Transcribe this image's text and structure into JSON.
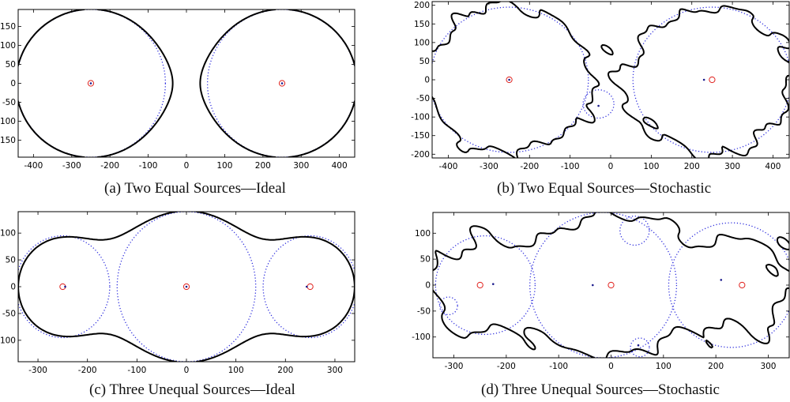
{
  "chart_data": [
    {
      "type": "scatter",
      "caption": "(a)  Two Equal Sources—Ideal",
      "xlim": [
        -440,
        440
      ],
      "ylim": [
        -195,
        195
      ],
      "xticks": [
        -400,
        -300,
        -200,
        -100,
        0,
        100,
        200,
        300,
        400
      ],
      "yticks": [
        -150,
        -100,
        -50,
        0,
        50,
        100,
        150
      ],
      "sources": [
        {
          "x": -250,
          "y": 0
        },
        {
          "x": 250,
          "y": 0
        }
      ],
      "estimates": [
        {
          "x": -250,
          "y": 0
        },
        {
          "x": 250,
          "y": 0
        }
      ],
      "circles": [
        {
          "cx": -250,
          "cy": 0,
          "r": 195
        },
        {
          "cx": 250,
          "cy": 0,
          "r": 195
        }
      ],
      "boundary": {
        "model": "sum",
        "stochastic": false,
        "sources": [
          {
            "x": -250,
            "y": 0,
            "k": 1
          },
          {
            "x": 250,
            "y": 0,
            "k": 1
          }
        ],
        "flatten": 0.99
      }
    },
    {
      "type": "scatter",
      "caption": "(b)  Two Equal Sources—Stochastic",
      "xlim": [
        -440,
        440
      ],
      "ylim": [
        -210,
        210
      ],
      "xticks": [
        -400,
        -300,
        -200,
        -100,
        0,
        100,
        200,
        300,
        400
      ],
      "yticks": [
        -200,
        -150,
        -100,
        -50,
        0,
        50,
        100,
        150,
        200
      ],
      "sources": [
        {
          "x": -250,
          "y": 0
        },
        {
          "x": 250,
          "y": 0
        }
      ],
      "estimates": [
        {
          "x": -250,
          "y": 0
        },
        {
          "x": 230,
          "y": 0
        },
        {
          "x": -30,
          "y": -70
        }
      ],
      "circles": [
        {
          "cx": -250,
          "cy": 0,
          "r": 195
        },
        {
          "cx": 250,
          "cy": 0,
          "r": 195
        },
        {
          "cx": -30,
          "cy": -65,
          "r": 38
        }
      ],
      "boundary": {
        "model": "sum",
        "stochastic": true,
        "sources": [
          {
            "x": -250,
            "y": 0,
            "k": 1
          },
          {
            "x": 250,
            "y": 0,
            "k": 1
          }
        ],
        "flatten": 0.99
      }
    },
    {
      "type": "scatter",
      "caption": "(c)  Three Unequal Sources—Ideal",
      "xlim": [
        -340,
        340
      ],
      "ylim": [
        -140,
        140
      ],
      "xticks": [
        -300,
        -200,
        -100,
        0,
        100,
        200,
        300
      ],
      "yticks": [
        -100,
        -50,
        0,
        50,
        100
      ],
      "sources": [
        {
          "x": -250,
          "y": 0
        },
        {
          "x": 0,
          "y": 0
        },
        {
          "x": 250,
          "y": 0
        }
      ],
      "estimates": [
        {
          "x": -245,
          "y": 0
        },
        {
          "x": 0,
          "y": 0
        },
        {
          "x": 243,
          "y": 0
        }
      ],
      "circles": [
        {
          "cx": -250,
          "cy": 0,
          "r": 95
        },
        {
          "cx": 0,
          "cy": 0,
          "r": 140
        },
        {
          "cx": 250,
          "cy": 0,
          "r": 95
        }
      ],
      "boundary": {
        "model": "sum",
        "stochastic": false,
        "sources": [
          {
            "x": -250,
            "y": 0,
            "k": 0.46
          },
          {
            "x": 0,
            "y": 0,
            "k": 1
          },
          {
            "x": 250,
            "y": 0,
            "k": 0.46
          }
        ],
        "flatten": 0.99
      }
    },
    {
      "type": "scatter",
      "caption": "(d)  Three Unequal Sources—Stochastic",
      "xlim": [
        -340,
        340
      ],
      "ylim": [
        -140,
        140
      ],
      "xticks": [
        -300,
        -200,
        -100,
        0,
        100,
        200,
        300
      ],
      "yticks": [
        -100,
        -50,
        0,
        50,
        100
      ],
      "sources": [
        {
          "x": -250,
          "y": 0
        },
        {
          "x": 0,
          "y": 0
        },
        {
          "x": 250,
          "y": 0
        }
      ],
      "estimates": [
        {
          "x": -225,
          "y": 2
        },
        {
          "x": -35,
          "y": 0
        },
        {
          "x": 210,
          "y": 10
        },
        {
          "x": 52,
          "y": -116
        }
      ],
      "circles": [
        {
          "cx": -240,
          "cy": 0,
          "r": 95
        },
        {
          "cx": -15,
          "cy": 0,
          "r": 140
        },
        {
          "cx": 230,
          "cy": 0,
          "r": 120
        },
        {
          "cx": 45,
          "cy": 105,
          "r": 28
        },
        {
          "cx": -310,
          "cy": -40,
          "r": 17
        },
        {
          "cx": 55,
          "cy": -120,
          "r": 18
        }
      ],
      "boundary": {
        "model": "sum",
        "stochastic": true,
        "sources": [
          {
            "x": -250,
            "y": 0,
            "k": 0.46
          },
          {
            "x": 0,
            "y": 0,
            "k": 1
          },
          {
            "x": 250,
            "y": 0,
            "k": 0.46
          }
        ],
        "flatten": 0.99
      }
    }
  ],
  "colors": {
    "boundary": "#000000",
    "circle": "#2b2bdd",
    "source": "#e0201c",
    "estimate": "#1a1a8c",
    "axis": "#000000"
  }
}
